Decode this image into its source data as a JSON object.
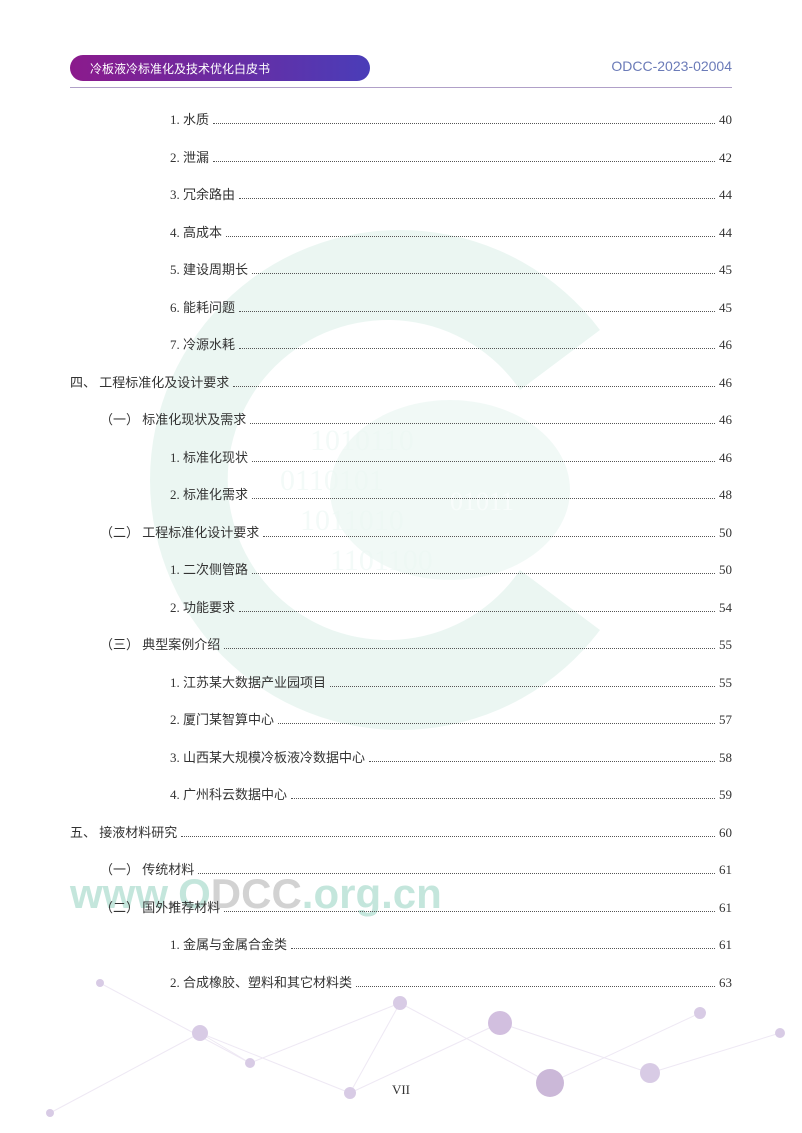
{
  "header": {
    "title": "冷板液冷标准化及技术优化白皮书",
    "doc_code": "ODCC-2023-02004",
    "bar_gradient_start": "#8b1a8c",
    "bar_gradient_end": "#4a3db8"
  },
  "watermark": {
    "url_parts": [
      {
        "text": "www",
        "color": "green"
      },
      {
        "text": ".",
        "color": "gray"
      },
      {
        "text": "O",
        "color": "green"
      },
      {
        "text": "DCC",
        "color": "gray"
      },
      {
        "text": ".org.cn",
        "color": "green"
      }
    ],
    "logo_color": "#7fc9b0"
  },
  "toc": [
    {
      "indent": 3,
      "label": "1. 水质",
      "page": "40"
    },
    {
      "indent": 3,
      "label": "2. 泄漏",
      "page": "42"
    },
    {
      "indent": 3,
      "label": "3. 冗余路由",
      "page": "44"
    },
    {
      "indent": 3,
      "label": "4. 高成本",
      "page": "44"
    },
    {
      "indent": 3,
      "label": "5. 建设周期长",
      "page": "45"
    },
    {
      "indent": 3,
      "label": "6. 能耗问题",
      "page": "45"
    },
    {
      "indent": 3,
      "label": "7. 冷源水耗",
      "page": "46"
    },
    {
      "indent": 0,
      "label": "四、 工程标准化及设计要求",
      "page": "46"
    },
    {
      "indent": 1,
      "label": "（一） 标准化现状及需求",
      "page": "46"
    },
    {
      "indent": 3,
      "label": "1. 标准化现状",
      "page": "46"
    },
    {
      "indent": 3,
      "label": "2. 标准化需求",
      "page": "48"
    },
    {
      "indent": 1,
      "label": "（二） 工程标准化设计要求",
      "page": "50"
    },
    {
      "indent": 3,
      "label": "1. 二次侧管路",
      "page": "50"
    },
    {
      "indent": 3,
      "label": "2. 功能要求",
      "page": "54"
    },
    {
      "indent": 1,
      "label": "（三） 典型案例介绍",
      "page": "55"
    },
    {
      "indent": 3,
      "label": "1. 江苏某大数据产业园项目",
      "page": "55"
    },
    {
      "indent": 3,
      "label": "2. 厦门某智算中心",
      "page": "57"
    },
    {
      "indent": 3,
      "label": "3. 山西某大规模冷板液冷数据中心",
      "page": "58"
    },
    {
      "indent": 3,
      "label": "4. 广州科云数据中心",
      "page": "59"
    },
    {
      "indent": 0,
      "label": "五、 接液材料研究",
      "page": "60"
    },
    {
      "indent": 1,
      "label": "（一） 传统材料",
      "page": "61"
    },
    {
      "indent": 1,
      "label": "（二） 国外推荐材料",
      "page": "61"
    },
    {
      "indent": 3,
      "label": "1. 金属与金属合金类",
      "page": "61"
    },
    {
      "indent": 3,
      "label": "2. 合成橡胶、塑料和其它材料类",
      "page": "63"
    }
  ],
  "page_number": "VII",
  "styles": {
    "text_color": "#333333",
    "font_size_toc": 13,
    "font_size_header": 12,
    "row_spacing": 18
  }
}
